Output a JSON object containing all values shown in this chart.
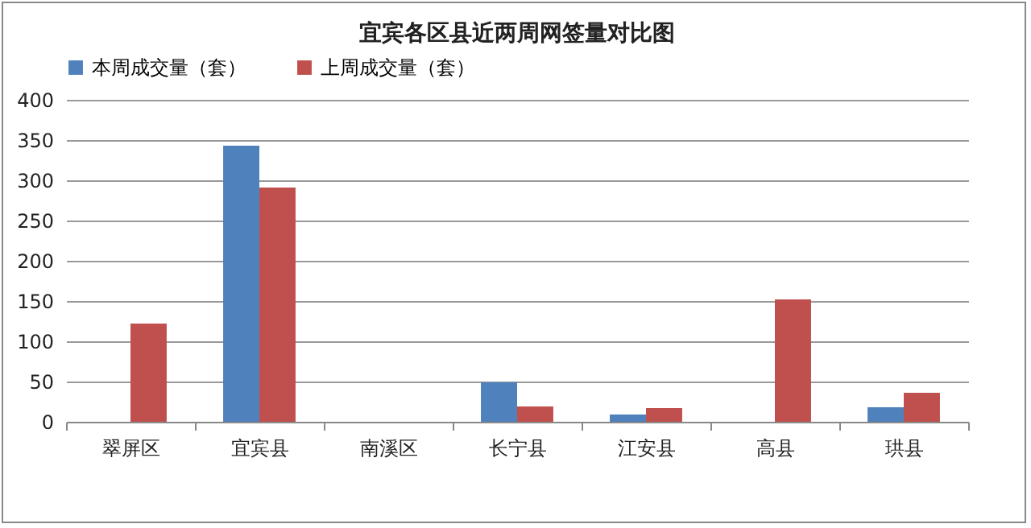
{
  "chart_data": {
    "type": "bar",
    "title": "宜宾各区县近两周网签量对比图",
    "categories": [
      "翠屏区",
      "宜宾县",
      "南溪区",
      "长宁县",
      "江安县",
      "高县",
      "珙县"
    ],
    "series": [
      {
        "name": "本周成交量（套）",
        "color": "#4f81bd",
        "values": [
          0,
          343,
          0,
          49,
          9,
          null,
          18
        ]
      },
      {
        "name": "上周成交量（套）",
        "color": "#c0504d",
        "values": [
          122,
          291,
          0,
          19,
          17,
          152,
          36
        ]
      }
    ],
    "ylim": [
      0,
      400
    ],
    "yticks": [
      0,
      50,
      100,
      150,
      200,
      250,
      300,
      350,
      400
    ],
    "grid": "y",
    "legend": "top"
  }
}
